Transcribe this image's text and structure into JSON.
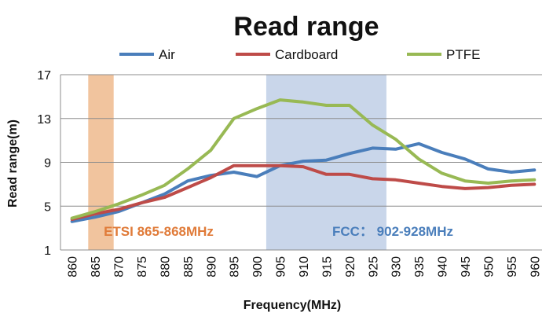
{
  "chart_data": {
    "type": "line",
    "title": "Read range",
    "xlabel": "Frequency(MHz)",
    "ylabel": "Read range(m)",
    "x": [
      860,
      865,
      870,
      875,
      880,
      885,
      890,
      895,
      900,
      905,
      910,
      915,
      920,
      925,
      930,
      935,
      940,
      945,
      950,
      955,
      960
    ],
    "x_tick_labels": [
      "860",
      "865",
      "870",
      "875",
      "880",
      "885",
      "890",
      "895",
      "900",
      "905",
      "910",
      "915",
      "920",
      "925",
      "930",
      "935",
      "940",
      "945",
      "950",
      "955",
      "960"
    ],
    "ylim": [
      1,
      17
    ],
    "y_ticks": [
      1,
      5,
      9,
      13,
      17
    ],
    "y_tick_labels": [
      "1",
      "5",
      "9",
      "13",
      "17"
    ],
    "grid": "horizontal",
    "legend_position": "top",
    "series": [
      {
        "name": "Air",
        "color": "#4a7ebb",
        "values": [
          3.6,
          4.0,
          4.5,
          5.3,
          6.1,
          7.3,
          7.8,
          8.1,
          7.7,
          8.7,
          9.1,
          9.2,
          9.8,
          10.3,
          10.2,
          10.7,
          9.9,
          9.3,
          8.4,
          8.1,
          8.3
        ]
      },
      {
        "name": "Cardboard",
        "color": "#be4b48",
        "values": [
          3.8,
          4.3,
          4.7,
          5.3,
          5.8,
          6.7,
          7.6,
          8.7,
          8.7,
          8.7,
          8.6,
          7.9,
          7.9,
          7.5,
          7.4,
          7.1,
          6.8,
          6.6,
          6.7,
          6.9,
          7.0
        ]
      },
      {
        "name": "PTFE",
        "color": "#98b954",
        "values": [
          3.9,
          4.5,
          5.2,
          6.0,
          6.9,
          8.4,
          10.1,
          13.0,
          13.9,
          14.7,
          14.5,
          14.2,
          14.2,
          12.4,
          11.1,
          9.3,
          8.0,
          7.3,
          7.1,
          7.3,
          7.4
        ]
      }
    ],
    "bands": [
      {
        "label": "ETSI 865-868MHz",
        "from": 863.5,
        "to": 869.0,
        "color": "#f1c49e",
        "label_color": "#e07b39"
      },
      {
        "label": "FCC：  902-928MHz",
        "from": 902.0,
        "to": 928.0,
        "color": "#c9d6ea",
        "label_color": "#4a7ebb"
      }
    ]
  }
}
